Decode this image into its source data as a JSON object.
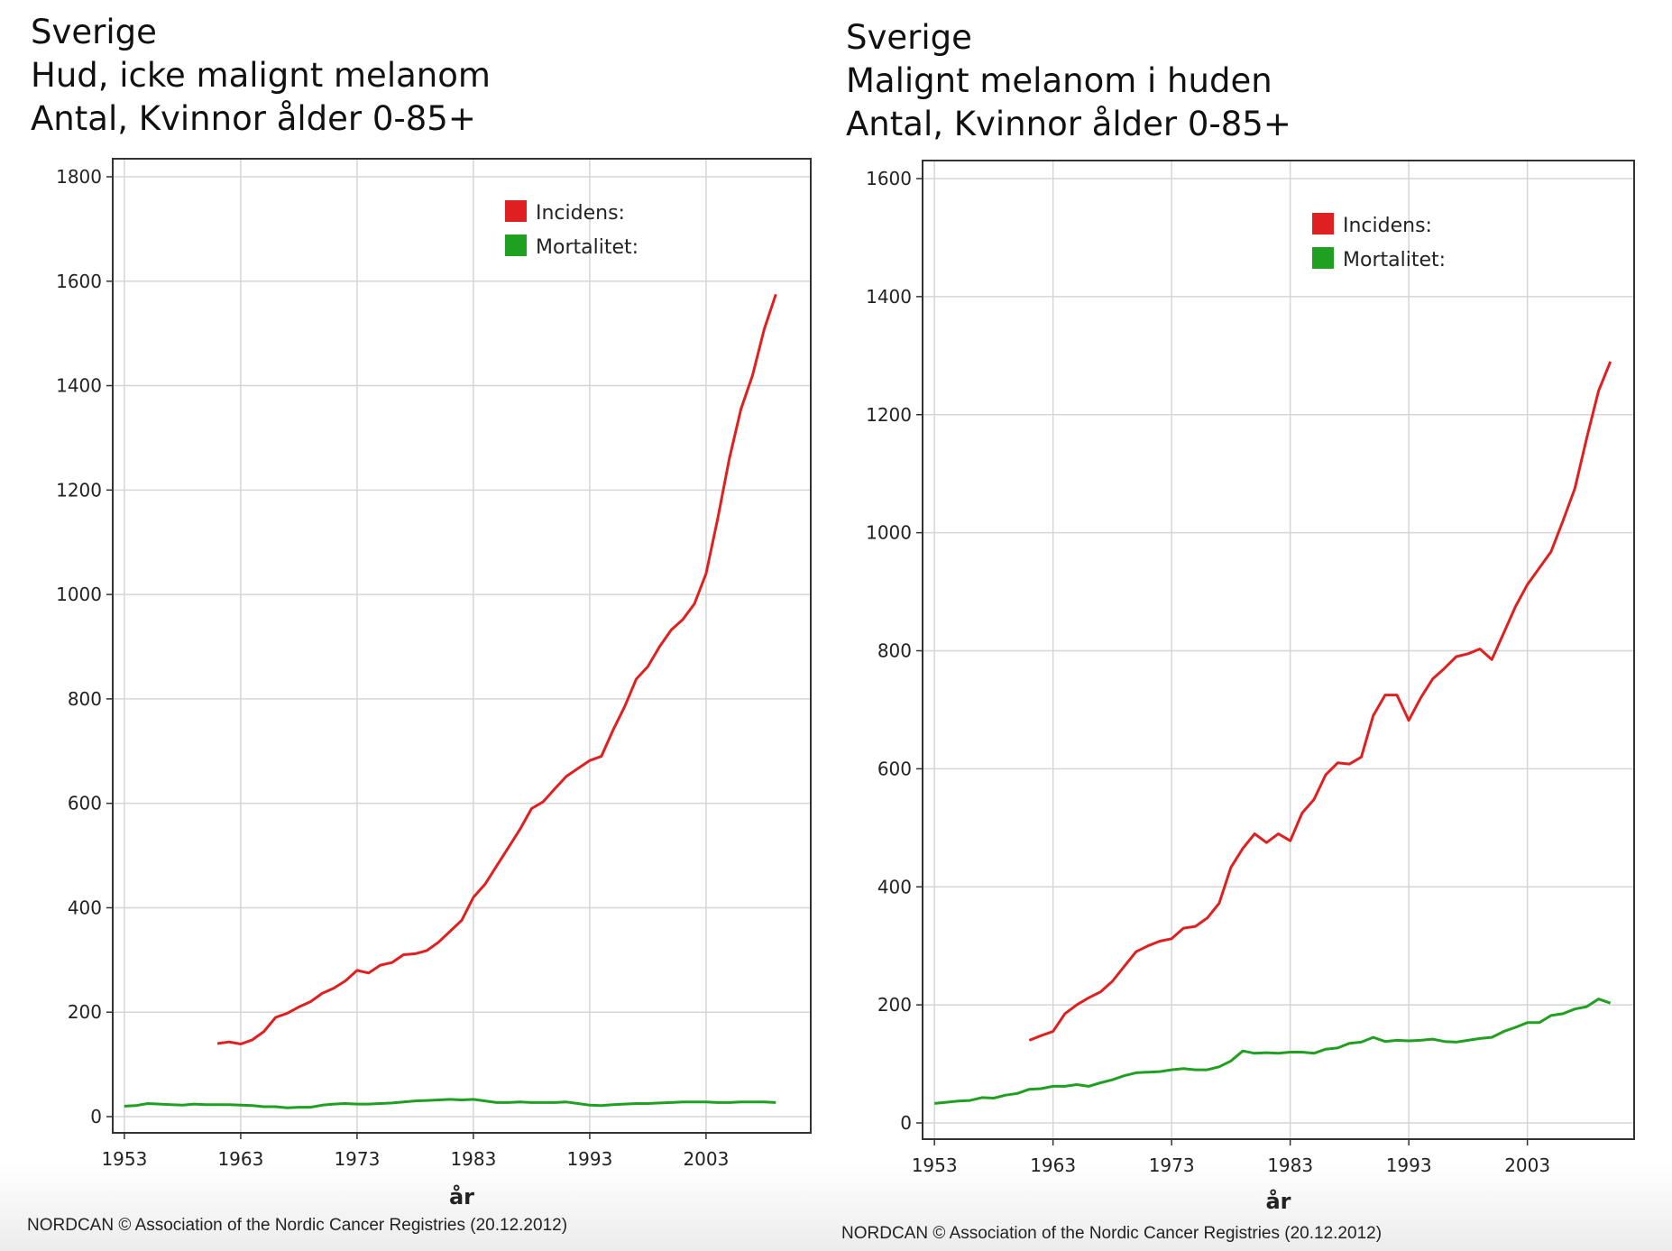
{
  "chart_data": [
    {
      "type": "line",
      "title": [
        "Sverige",
        "Hud, icke malignt melanom",
        "Antal, Kvinnor ålder 0-85+"
      ],
      "xlabel": "år",
      "ylabel": "",
      "xlim": [
        1952,
        2012
      ],
      "ylim": [
        0,
        1800
      ],
      "xticks": [
        1953,
        1963,
        1973,
        1983,
        1993,
        2003
      ],
      "yticks": [
        0,
        200,
        400,
        600,
        800,
        1000,
        1200,
        1400,
        1600,
        1800
      ],
      "grid": true,
      "legend_position": "top-right",
      "footer": "NORDCAN © Association of the Nordic Cancer Registries (20.12.2012)",
      "series": [
        {
          "name": "Incidens:",
          "color": "#e02020",
          "points": [
            [
              1961,
              140
            ],
            [
              1962,
              143
            ],
            [
              1963,
              139
            ],
            [
              1964,
              147
            ],
            [
              1965,
              163
            ],
            [
              1966,
              190
            ],
            [
              1967,
              198
            ],
            [
              1968,
              210
            ],
            [
              1969,
              220
            ],
            [
              1970,
              236
            ],
            [
              1971,
              246
            ],
            [
              1972,
              260
            ],
            [
              1973,
              280
            ],
            [
              1974,
              275
            ],
            [
              1975,
              290
            ],
            [
              1976,
              295
            ],
            [
              1977,
              310
            ],
            [
              1978,
              312
            ],
            [
              1979,
              318
            ],
            [
              1980,
              334
            ],
            [
              1981,
              355
            ],
            [
              1982,
              376
            ],
            [
              1983,
              420
            ],
            [
              1984,
              445
            ],
            [
              1985,
              480
            ],
            [
              1986,
              515
            ],
            [
              1987,
              550
            ],
            [
              1988,
              590
            ],
            [
              1989,
              603
            ],
            [
              1990,
              628
            ],
            [
              1991,
              652
            ],
            [
              1992,
              667
            ],
            [
              1993,
              682
            ],
            [
              1994,
              690
            ],
            [
              1995,
              740
            ],
            [
              1996,
              785
            ],
            [
              1997,
              838
            ],
            [
              1998,
              862
            ],
            [
              1999,
              900
            ],
            [
              2000,
              932
            ],
            [
              2001,
              952
            ],
            [
              2002,
              982
            ],
            [
              2003,
              1040
            ],
            [
              2004,
              1145
            ],
            [
              2005,
              1260
            ],
            [
              2006,
              1355
            ],
            [
              2007,
              1420
            ],
            [
              2008,
              1508
            ],
            [
              2009,
              1575
            ]
          ]
        },
        {
          "name": "Mortalitet:",
          "color": "#20a020",
          "points": [
            [
              1953,
              20
            ],
            [
              1954,
              21
            ],
            [
              1955,
              25
            ],
            [
              1956,
              24
            ],
            [
              1957,
              23
            ],
            [
              1958,
              22
            ],
            [
              1959,
              24
            ],
            [
              1960,
              23
            ],
            [
              1961,
              23
            ],
            [
              1962,
              23
            ],
            [
              1963,
              22
            ],
            [
              1964,
              21
            ],
            [
              1965,
              19
            ],
            [
              1966,
              19
            ],
            [
              1967,
              17
            ],
            [
              1968,
              18
            ],
            [
              1969,
              18
            ],
            [
              1970,
              22
            ],
            [
              1971,
              24
            ],
            [
              1972,
              25
            ],
            [
              1973,
              24
            ],
            [
              1974,
              24
            ],
            [
              1975,
              25
            ],
            [
              1976,
              26
            ],
            [
              1977,
              28
            ],
            [
              1978,
              30
            ],
            [
              1979,
              31
            ],
            [
              1980,
              32
            ],
            [
              1981,
              33
            ],
            [
              1982,
              32
            ],
            [
              1983,
              33
            ],
            [
              1984,
              30
            ],
            [
              1985,
              27
            ],
            [
              1986,
              27
            ],
            [
              1987,
              28
            ],
            [
              1988,
              27
            ],
            [
              1989,
              27
            ],
            [
              1990,
              27
            ],
            [
              1991,
              28
            ],
            [
              1992,
              25
            ],
            [
              1993,
              22
            ],
            [
              1994,
              21
            ],
            [
              1995,
              23
            ],
            [
              1996,
              24
            ],
            [
              1997,
              25
            ],
            [
              1998,
              25
            ],
            [
              1999,
              26
            ],
            [
              2000,
              27
            ],
            [
              2001,
              28
            ],
            [
              2002,
              28
            ],
            [
              2003,
              28
            ],
            [
              2004,
              27
            ],
            [
              2005,
              27
            ],
            [
              2006,
              28
            ],
            [
              2007,
              28
            ],
            [
              2008,
              28
            ],
            [
              2009,
              27
            ]
          ]
        }
      ]
    },
    {
      "type": "line",
      "title": [
        "Sverige",
        "Malignt melanom i huden",
        "Antal, Kvinnor ålder 0-85+"
      ],
      "xlabel": "år",
      "ylabel": "",
      "xlim": [
        1952,
        2012
      ],
      "ylim": [
        0,
        1600
      ],
      "xticks": [
        1953,
        1963,
        1973,
        1983,
        1993,
        2003
      ],
      "yticks": [
        0,
        200,
        400,
        600,
        800,
        1000,
        1200,
        1400,
        1600
      ],
      "grid": true,
      "legend_position": "top-right",
      "footer": "NORDCAN © Association of the Nordic Cancer Registries (20.12.2012)",
      "series": [
        {
          "name": "Incidens:",
          "color": "#e02020",
          "points": [
            [
              1961,
              140
            ],
            [
              1962,
              148
            ],
            [
              1963,
              155
            ],
            [
              1964,
              185
            ],
            [
              1965,
              200
            ],
            [
              1966,
              212
            ],
            [
              1967,
              222
            ],
            [
              1968,
              240
            ],
            [
              1969,
              265
            ],
            [
              1970,
              290
            ],
            [
              1971,
              300
            ],
            [
              1972,
              308
            ],
            [
              1973,
              312
            ],
            [
              1974,
              330
            ],
            [
              1975,
              333
            ],
            [
              1976,
              347
            ],
            [
              1977,
              372
            ],
            [
              1978,
              433
            ],
            [
              1979,
              465
            ],
            [
              1980,
              490
            ],
            [
              1981,
              475
            ],
            [
              1982,
              490
            ],
            [
              1983,
              478
            ],
            [
              1984,
              525
            ],
            [
              1985,
              548
            ],
            [
              1986,
              590
            ],
            [
              1987,
              610
            ],
            [
              1988,
              608
            ],
            [
              1989,
              620
            ],
            [
              1990,
              690
            ],
            [
              1991,
              725
            ],
            [
              1992,
              725
            ],
            [
              1993,
              682
            ],
            [
              1994,
              720
            ],
            [
              1995,
              752
            ],
            [
              1996,
              770
            ],
            [
              1997,
              790
            ],
            [
              1998,
              795
            ],
            [
              1999,
              803
            ],
            [
              2000,
              785
            ],
            [
              2001,
              830
            ],
            [
              2002,
              875
            ],
            [
              2003,
              912
            ],
            [
              2004,
              940
            ],
            [
              2005,
              968
            ],
            [
              2006,
              1020
            ],
            [
              2007,
              1075
            ],
            [
              2008,
              1160
            ],
            [
              2009,
              1240
            ],
            [
              2010,
              1290
            ]
          ]
        },
        {
          "name": "Mortalitet:",
          "color": "#20a020",
          "points": [
            [
              1953,
              33
            ],
            [
              1954,
              35
            ],
            [
              1955,
              37
            ],
            [
              1956,
              38
            ],
            [
              1957,
              43
            ],
            [
              1958,
              42
            ],
            [
              1959,
              47
            ],
            [
              1960,
              50
            ],
            [
              1961,
              57
            ],
            [
              1962,
              58
            ],
            [
              1963,
              62
            ],
            [
              1964,
              62
            ],
            [
              1965,
              65
            ],
            [
              1966,
              62
            ],
            [
              1967,
              68
            ],
            [
              1968,
              73
            ],
            [
              1969,
              80
            ],
            [
              1970,
              85
            ],
            [
              1971,
              86
            ],
            [
              1972,
              87
            ],
            [
              1973,
              90
            ],
            [
              1974,
              92
            ],
            [
              1975,
              90
            ],
            [
              1976,
              90
            ],
            [
              1977,
              95
            ],
            [
              1978,
              105
            ],
            [
              1979,
              122
            ],
            [
              1980,
              118
            ],
            [
              1981,
              119
            ],
            [
              1982,
              118
            ],
            [
              1983,
              120
            ],
            [
              1984,
              120
            ],
            [
              1985,
              118
            ],
            [
              1986,
              125
            ],
            [
              1987,
              127
            ],
            [
              1988,
              135
            ],
            [
              1989,
              137
            ],
            [
              1990,
              145
            ],
            [
              1991,
              138
            ],
            [
              1992,
              140
            ],
            [
              1993,
              139
            ],
            [
              1994,
              140
            ],
            [
              1995,
              142
            ],
            [
              1996,
              138
            ],
            [
              1997,
              137
            ],
            [
              1998,
              140
            ],
            [
              1999,
              143
            ],
            [
              2000,
              145
            ],
            [
              2001,
              155
            ],
            [
              2002,
              162
            ],
            [
              2003,
              170
            ],
            [
              2004,
              170
            ],
            [
              2005,
              182
            ],
            [
              2006,
              185
            ],
            [
              2007,
              193
            ],
            [
              2008,
              197
            ],
            [
              2009,
              210
            ],
            [
              2010,
              203
            ]
          ]
        }
      ]
    }
  ]
}
